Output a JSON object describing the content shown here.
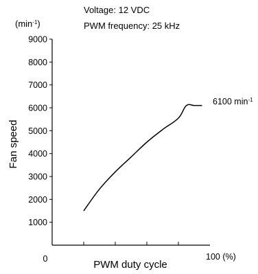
{
  "chart_data": {
    "type": "line",
    "annotations": [
      "Voltage: 12 VDC",
      "PWM frequency: 25 kHz"
    ],
    "ylabel": "Fan speed",
    "y_unit": "(min-1)",
    "xlabel": "PWM duty cycle",
    "x_max_label": "100 (%)",
    "x_origin_label": "0",
    "xlim": [
      0,
      100
    ],
    "ylim": [
      0,
      9000
    ],
    "y_ticks": [
      1000,
      2000,
      3000,
      4000,
      5000,
      6000,
      7000,
      8000,
      9000
    ],
    "y_tick_labels": [
      "1000",
      "2000",
      "3000",
      "4000",
      "5000",
      "6000",
      "7000",
      "8000",
      "9000"
    ],
    "x_ticks": [
      20,
      40,
      60,
      80
    ],
    "grid": false,
    "series": [
      {
        "x": [
          20,
          30,
          40,
          50,
          60,
          70,
          80,
          85,
          90,
          95
        ],
        "values": [
          1500,
          2450,
          3200,
          3850,
          4500,
          5050,
          5550,
          6100,
          6100,
          6100
        ]
      }
    ],
    "end_label": "6100 min-1"
  }
}
